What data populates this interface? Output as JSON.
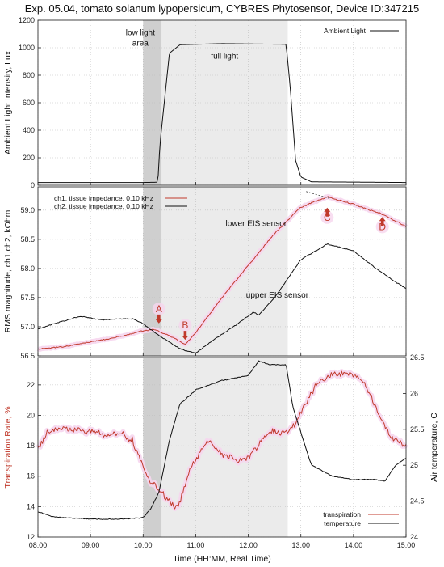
{
  "title": "Exp. 05.04, tomato solanum lypopersicum, CYBRES Phytosensor, Device ID:347215",
  "colors": {
    "red": "#c0392b",
    "black": "#111111",
    "shade_light": "#ebebeb",
    "shade_dark": "#cfcfcf",
    "glow": "#f6d6ee"
  },
  "chart_data": [
    {
      "type": "line",
      "ylabel": "Ambient Light Intensity, Lux",
      "xlim": [
        8.0,
        15.0
      ],
      "ylim": [
        0,
        1200
      ],
      "yticks": [
        0,
        200,
        400,
        600,
        800,
        1000,
        1200
      ],
      "grid": true,
      "legend_position": "top-right",
      "series": [
        {
          "name": "Ambient Light",
          "color": "#111111",
          "x": [
            8.0,
            10.0,
            10.28,
            10.32,
            10.5,
            10.7,
            11.5,
            12.0,
            12.72,
            12.8,
            12.9,
            13.0,
            13.2,
            15.0
          ],
          "y": [
            20,
            20,
            22,
            300,
            960,
            1022,
            1030,
            1028,
            1025,
            700,
            180,
            60,
            25,
            20
          ]
        }
      ],
      "annotations": [
        {
          "text_lines": [
            "low light",
            "area"
          ],
          "x": 10.1,
          "y": 1090
        },
        {
          "text": "full light",
          "x": 11.55,
          "y": 920
        }
      ]
    },
    {
      "type": "line",
      "ylabel": "RMS magnitude, ch1,ch2, kOhm",
      "xlim": [
        8.0,
        15.0
      ],
      "ylim": [
        56.5,
        59.4
      ],
      "yticks": [
        56.5,
        57.0,
        57.5,
        58.0,
        58.5,
        59.0
      ],
      "ytick_labels": [
        "56.5",
        "57.0",
        "57.5",
        "58.0",
        "58.5",
        "59.0"
      ],
      "grid": true,
      "legend_position": "top-left",
      "series": [
        {
          "name": "ch1, tissue impedance, 0.10 kHz",
          "color": "#c0392b",
          "x": [
            8.0,
            8.5,
            9.0,
            9.5,
            10.0,
            10.2,
            10.5,
            10.8,
            11.0,
            11.5,
            12.0,
            12.5,
            13.0,
            13.5,
            14.0,
            14.5,
            15.0
          ],
          "y": [
            56.62,
            56.66,
            56.74,
            56.82,
            56.93,
            56.95,
            56.85,
            56.7,
            56.9,
            57.5,
            58.05,
            58.6,
            59.05,
            59.23,
            59.1,
            58.95,
            58.72
          ]
        },
        {
          "name": "ch2, tissue impedance, 0.10 kHz",
          "color": "#111111",
          "x": [
            8.0,
            8.3,
            8.8,
            9.2,
            9.8,
            10.0,
            10.3,
            10.7,
            11.0,
            11.3,
            11.8,
            12.1,
            12.2,
            12.5,
            13.0,
            13.5,
            14.0,
            14.5,
            15.0
          ],
          "y": [
            56.96,
            57.05,
            57.18,
            57.12,
            57.14,
            57.05,
            56.85,
            56.62,
            56.55,
            56.75,
            57.05,
            57.25,
            57.2,
            57.5,
            58.15,
            58.42,
            58.3,
            57.95,
            57.65
          ]
        }
      ],
      "annotations": [
        {
          "text": "lower EIS sensor",
          "x": 12.15,
          "y": 58.73
        },
        {
          "text": "upper EIS sensor",
          "x": 12.55,
          "y": 57.5
        },
        {
          "text": "A",
          "x": 10.3,
          "y": 57.25
        },
        {
          "text": "B",
          "x": 10.8,
          "y": 56.97
        },
        {
          "text": "C",
          "x": 13.5,
          "y": 58.82
        },
        {
          "text": "D",
          "x": 14.55,
          "y": 58.66
        }
      ]
    },
    {
      "type": "line",
      "xlabel": "Time (HH:MM, Real Time)",
      "ylabel": "Transpiration Rate, %",
      "y2label": "Air temperature, C",
      "xlim": [
        8.0,
        15.0
      ],
      "xticks": [
        8,
        9,
        10,
        11,
        12,
        13,
        14,
        15
      ],
      "xtick_labels": [
        "08:00",
        "09:00",
        "10:00",
        "11:00",
        "12:00",
        "13:00",
        "14:00",
        "15:00"
      ],
      "ylim": [
        12,
        23.8
      ],
      "yticks": [
        12,
        14,
        16,
        18,
        20,
        22
      ],
      "y2lim": [
        24,
        26.5
      ],
      "y2ticks": [
        24,
        24.5,
        25,
        25.5,
        26,
        26.5
      ],
      "y2tick_labels": [
        "24",
        "24.5",
        "25",
        "25.5",
        "26",
        "26.5"
      ],
      "grid": true,
      "legend_position": "bottom-right",
      "series": [
        {
          "name": "transpiration",
          "color": "#c0392b",
          "axis": "left",
          "x": [
            8.0,
            8.2,
            8.5,
            9.0,
            9.3,
            9.6,
            9.8,
            10.0,
            10.15,
            10.3,
            10.45,
            10.6,
            10.7,
            10.9,
            11.2,
            11.5,
            11.8,
            12.0,
            12.3,
            12.5,
            12.7,
            12.9,
            13.1,
            13.3,
            13.6,
            14.0,
            14.2,
            14.4,
            14.6,
            14.8,
            15.0
          ],
          "y": [
            17.8,
            19.0,
            19.1,
            19.0,
            18.7,
            18.8,
            18.3,
            16.5,
            15.5,
            15.2,
            14.5,
            14.0,
            14.3,
            16.5,
            18.4,
            17.4,
            17.0,
            17.2,
            18.5,
            19.0,
            18.8,
            19.5,
            20.8,
            22.1,
            22.7,
            22.7,
            22.2,
            20.8,
            19.2,
            18.3,
            18.0
          ]
        },
        {
          "name": "temperature",
          "color": "#111111",
          "axis": "right",
          "x": [
            8.0,
            8.3,
            9.0,
            9.6,
            10.0,
            10.15,
            10.3,
            10.5,
            10.7,
            11.0,
            11.5,
            12.0,
            12.2,
            12.4,
            12.72,
            12.85,
            13.2,
            13.6,
            14.0,
            14.4,
            14.6,
            14.8,
            15.0
          ],
          "y": [
            24.35,
            24.28,
            24.25,
            24.25,
            24.27,
            24.4,
            24.62,
            25.35,
            25.85,
            26.05,
            26.18,
            26.25,
            26.45,
            26.4,
            26.4,
            25.8,
            25.0,
            24.85,
            24.8,
            24.8,
            24.78,
            25.0,
            25.1
          ]
        }
      ]
    }
  ]
}
